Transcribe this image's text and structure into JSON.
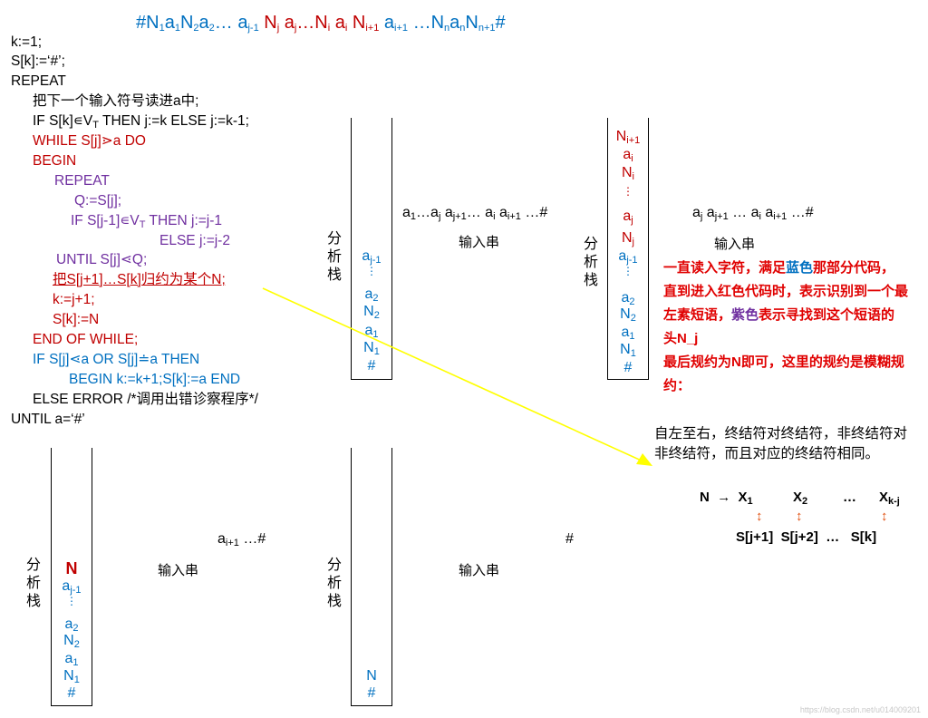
{
  "top_string": {
    "p1": "#N",
    "s1": "1",
    "p2": "a",
    "s2": "1",
    "p3": "N",
    "s3": "2",
    "p4": "a",
    "s4": "2",
    "p5": "… a",
    "s5": "j-1",
    "p6": " N",
    "s6": "j",
    "p7": " a",
    "s7": "j",
    "p8": "…N",
    "s8": "i",
    "p9": " a",
    "s9": "i",
    "p10": " N",
    "s10": "i+1",
    "p11": " a",
    "s11": "i+1",
    "p12": " …N",
    "s12": "n",
    "p13": "a",
    "s13": "n",
    "p14": "N",
    "s14": "n+1",
    "p15": "#"
  },
  "algorithm": {
    "l1": "k:=1;",
    "l2": "S[k]:=‘#’;",
    "l3": "REPEAT",
    "l4": "把下一个输入符号读进a中;",
    "l5a": "IF S[k]∊V",
    "l5s": "T",
    "l5b": " THEN  j:=k  ELSE  j:=k-1;",
    "l6": "WHILE S[j]⋗a DO",
    "l7": "BEGIN",
    "l8": "REPEAT",
    "l9": "Q:=S[j];",
    "l10a": "IF S[j-1]∊V",
    "l10s": "T",
    "l10b": " THEN j:=j-1",
    "l11": "ELSE j:=j-2",
    "l12": "UNTIL S[j]⋖Q;",
    "l13": "把S[j+1]…S[k]归约为某个N;",
    "l14": "k:=j+1;",
    "l15": "S[k]:=N",
    "l16": "END OF WHILE;",
    "l17": "IF S[j]⋖a OR S[j]≐a THEN",
    "l18": "BEGIN k:=k+1;S[k]:=a END",
    "l19": "ELSE ERROR /*调用出错诊察程序*/",
    "l20": "UNTIL a=‘#’"
  },
  "labels": {
    "stack_label": "分析栈",
    "input_label": "输入串"
  },
  "stack1": {
    "c1b": "a",
    "c1s": "j-1",
    "c2": "⋮",
    "c3b": "a",
    "c3s": "2",
    "c4b": "N",
    "c4s": "2",
    "c5b": "a",
    "c5s": "1",
    "c6b": "N",
    "c6s": "1",
    "c7": "#",
    "input": {
      "p1": "a",
      "s1": "1",
      "p2": "…a",
      "s2": "j",
      "p3": " a",
      "s3": "j+1",
      "p4": "… a",
      "s4": "i",
      "p5": " a",
      "s5": "i+1",
      "p6": " …#"
    }
  },
  "stack2": {
    "c1b": "N",
    "c1s": "i+1",
    "c2b": "a",
    "c2s": "i",
    "c3b": "N",
    "c3s": "i",
    "c4": "⋮",
    "c5b": "a",
    "c5s": "j",
    "c6b": "N",
    "c6s": "j",
    "c7b": "a",
    "c7s": "j-1",
    "c8": "⋮",
    "c9b": "a",
    "c9s": "2",
    "c10b": "N",
    "c10s": "2",
    "c11b": "a",
    "c11s": "1",
    "c12b": "N",
    "c12s": "1",
    "c13": "#",
    "input": {
      "p1": "a",
      "s1": "j",
      "p2": " a",
      "s2": "j+1",
      "p3": " … a",
      "s3": "i",
      "p4": " a",
      "s4": "i+1",
      "p5": " …#"
    }
  },
  "stack3": {
    "c1": "N",
    "c2b": "a",
    "c2s": "j-1",
    "c3": "⋮",
    "c4b": "a",
    "c4s": "2",
    "c5b": "N",
    "c5s": "2",
    "c6b": "a",
    "c6s": "1",
    "c7b": "N",
    "c7s": "1",
    "c8": "#",
    "input": {
      "p1": "a",
      "s1": "i+1",
      "p2": " …#"
    }
  },
  "stack4": {
    "c1": "N",
    "c2": "#",
    "input": "#"
  },
  "note": {
    "t1": "一直读入字符，满足",
    "t2": "蓝色",
    "t3": "那部分代码，直到进入红色代码时，表示识别到一个最左素短语，",
    "t4": "紫色",
    "t5": "表示寻找到这个短语的头N_j",
    "t6": "最后规约为N即可，这里的规约是模糊规约："
  },
  "description": "自左至右，终结符对终结符，非终结符对非终结符，而且对应的终结符相同。",
  "production": {
    "lhs": "N",
    "arrow": "→",
    "x1b": "X",
    "x1s": "1",
    "x2b": "X",
    "x2s": "2",
    "dots": "…",
    "xkb": "X",
    "xks": "k-j",
    "updown": "↕",
    "r1": "S[j+1]",
    "r2": "S[j+2]",
    "r3": "…",
    "r4": "S[k]"
  },
  "watermark": "https://blog.csdn.net/u014009201",
  "colors": {
    "blue": "#0070c0",
    "red": "#c00000",
    "purple": "#7030a0",
    "arrow": "#ffff00",
    "note": "#e00000"
  }
}
